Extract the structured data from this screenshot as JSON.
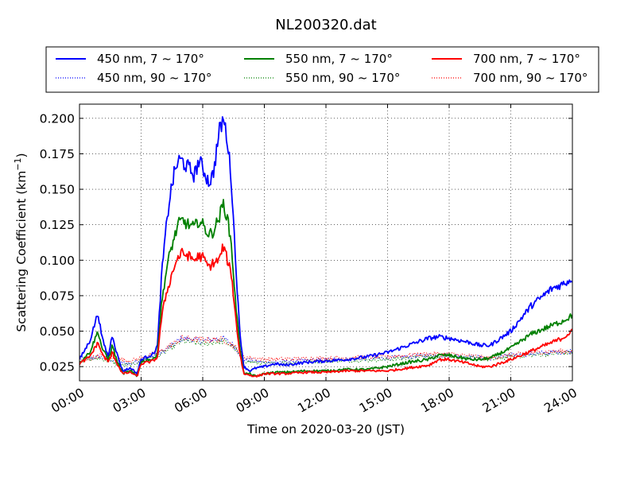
{
  "chart_data": {
    "type": "line",
    "title": "NL200320.dat",
    "xlabel": "Time on 2020-03-20 (JST)",
    "ylabel": "Scattering Coefficient (km",
    "ylabel_sup": "−1",
    "ylabel_close": ")",
    "xlim": [
      0,
      24
    ],
    "ylim": [
      0.015,
      0.21
    ],
    "x_ticks": [
      {
        "v": 0,
        "label": "00:00"
      },
      {
        "v": 3,
        "label": "03:00"
      },
      {
        "v": 6,
        "label": "06:00"
      },
      {
        "v": 9,
        "label": "09:00"
      },
      {
        "v": 12,
        "label": "12:00"
      },
      {
        "v": 15,
        "label": "15:00"
      },
      {
        "v": 18,
        "label": "18:00"
      },
      {
        "v": 21,
        "label": "21:00"
      },
      {
        "v": 24,
        "label": "24:00"
      }
    ],
    "y_ticks": [
      {
        "v": 0.025,
        "label": "0.025"
      },
      {
        "v": 0.05,
        "label": "0.050"
      },
      {
        "v": 0.075,
        "label": "0.075"
      },
      {
        "v": 0.1,
        "label": "0.100"
      },
      {
        "v": 0.125,
        "label": "0.125"
      },
      {
        "v": 0.15,
        "label": "0.150"
      },
      {
        "v": 0.175,
        "label": "0.175"
      },
      {
        "v": 0.2,
        "label": "0.200"
      }
    ],
    "grid": true,
    "legend_position": "top, above plot, 3 columns",
    "series": [
      {
        "name": "450 nm, 7 ~ 170°",
        "color": "#0000ff",
        "style": "solid",
        "x": [
          0,
          0.5,
          0.9,
          1.1,
          1.4,
          1.6,
          1.8,
          2.1,
          2.5,
          2.8,
          3.0,
          3.3,
          3.6,
          3.8,
          4.0,
          4.2,
          4.4,
          4.6,
          4.8,
          5.0,
          5.3,
          5.6,
          5.8,
          6.0,
          6.3,
          6.5,
          6.8,
          7.0,
          7.2,
          7.4,
          7.6,
          7.8,
          8.0,
          8.3,
          8.6,
          9.0,
          9.5,
          10,
          11,
          12,
          13,
          14,
          15,
          16,
          17,
          17.5,
          18,
          19,
          19.5,
          20,
          21,
          22,
          23,
          23.5,
          24
        ],
        "y": [
          0.03,
          0.043,
          0.063,
          0.045,
          0.032,
          0.048,
          0.035,
          0.022,
          0.024,
          0.02,
          0.03,
          0.032,
          0.034,
          0.04,
          0.09,
          0.12,
          0.145,
          0.16,
          0.17,
          0.17,
          0.165,
          0.16,
          0.17,
          0.165,
          0.155,
          0.16,
          0.19,
          0.2,
          0.185,
          0.155,
          0.1,
          0.05,
          0.025,
          0.022,
          0.024,
          0.025,
          0.027,
          0.026,
          0.028,
          0.029,
          0.03,
          0.032,
          0.035,
          0.04,
          0.045,
          0.046,
          0.045,
          0.042,
          0.04,
          0.04,
          0.05,
          0.068,
          0.08,
          0.083,
          0.087
        ]
      },
      {
        "name": "550 nm, 7 ~ 170°",
        "color": "#008000",
        "style": "solid",
        "x": [
          0,
          0.5,
          0.9,
          1.1,
          1.4,
          1.6,
          1.8,
          2.1,
          2.5,
          2.8,
          3.0,
          3.3,
          3.6,
          3.8,
          4.0,
          4.2,
          4.4,
          4.6,
          4.8,
          5.0,
          5.3,
          5.6,
          5.8,
          6.0,
          6.3,
          6.5,
          6.8,
          7.0,
          7.2,
          7.4,
          7.6,
          7.8,
          8.0,
          8.3,
          8.6,
          9.0,
          9.5,
          10,
          11,
          12,
          13,
          14,
          15,
          16,
          17,
          17.5,
          18,
          19,
          19.5,
          20,
          21,
          22,
          23,
          23.5,
          24
        ],
        "y": [
          0.028,
          0.035,
          0.05,
          0.038,
          0.03,
          0.04,
          0.03,
          0.02,
          0.022,
          0.018,
          0.028,
          0.03,
          0.03,
          0.035,
          0.07,
          0.09,
          0.105,
          0.115,
          0.125,
          0.128,
          0.125,
          0.123,
          0.128,
          0.125,
          0.118,
          0.12,
          0.13,
          0.14,
          0.13,
          0.11,
          0.07,
          0.04,
          0.02,
          0.02,
          0.018,
          0.02,
          0.021,
          0.021,
          0.022,
          0.022,
          0.023,
          0.023,
          0.025,
          0.028,
          0.03,
          0.033,
          0.033,
          0.03,
          0.03,
          0.031,
          0.038,
          0.048,
          0.054,
          0.057,
          0.061
        ]
      },
      {
        "name": "700 nm, 7 ~ 170°",
        "color": "#ff0000",
        "style": "solid",
        "x": [
          0,
          0.5,
          0.9,
          1.1,
          1.4,
          1.6,
          1.8,
          2.1,
          2.5,
          2.8,
          3.0,
          3.3,
          3.6,
          3.8,
          4.0,
          4.2,
          4.4,
          4.6,
          4.8,
          5.0,
          5.3,
          5.6,
          5.8,
          6.0,
          6.3,
          6.5,
          6.8,
          7.0,
          7.2,
          7.4,
          7.6,
          7.8,
          8.0,
          8.3,
          8.6,
          9.0,
          9.5,
          10,
          11,
          12,
          13,
          14,
          15,
          16,
          17,
          17.5,
          18,
          19,
          19.5,
          20,
          21,
          22,
          23,
          23.5,
          24
        ],
        "y": [
          0.027,
          0.032,
          0.042,
          0.034,
          0.028,
          0.035,
          0.028,
          0.02,
          0.021,
          0.018,
          0.027,
          0.028,
          0.029,
          0.032,
          0.06,
          0.075,
          0.085,
          0.095,
          0.102,
          0.105,
          0.103,
          0.1,
          0.103,
          0.102,
          0.095,
          0.098,
          0.1,
          0.11,
          0.1,
          0.09,
          0.06,
          0.035,
          0.02,
          0.019,
          0.018,
          0.02,
          0.02,
          0.02,
          0.021,
          0.021,
          0.022,
          0.022,
          0.022,
          0.024,
          0.026,
          0.03,
          0.03,
          0.027,
          0.025,
          0.025,
          0.03,
          0.036,
          0.042,
          0.045,
          0.05
        ]
      },
      {
        "name": "450 nm, 90 ~ 170°",
        "color": "#0000ff",
        "style": "dotted",
        "x": [
          0,
          1,
          2,
          2.5,
          3,
          4,
          5,
          6,
          7,
          7.5,
          8,
          9,
          12,
          15,
          17,
          18,
          20,
          21,
          22,
          24
        ],
        "y": [
          0.03,
          0.032,
          0.028,
          0.027,
          0.03,
          0.035,
          0.045,
          0.043,
          0.045,
          0.04,
          0.03,
          0.028,
          0.03,
          0.031,
          0.033,
          0.033,
          0.031,
          0.033,
          0.034,
          0.036
        ]
      },
      {
        "name": "550 nm, 90 ~ 170°",
        "color": "#008000",
        "style": "dotted",
        "x": [
          0,
          1,
          2,
          2.5,
          3,
          4,
          5,
          6,
          7,
          7.5,
          8,
          9,
          12,
          15,
          17,
          18,
          20,
          21,
          22,
          24
        ],
        "y": [
          0.029,
          0.031,
          0.026,
          0.026,
          0.029,
          0.034,
          0.043,
          0.041,
          0.043,
          0.039,
          0.029,
          0.027,
          0.029,
          0.03,
          0.032,
          0.032,
          0.03,
          0.032,
          0.033,
          0.035
        ]
      },
      {
        "name": "700 nm, 90 ~ 170°",
        "color": "#ff0000",
        "style": "dotted",
        "x": [
          0,
          1,
          2,
          2.5,
          3,
          4,
          5,
          6,
          7,
          7.5,
          8,
          9,
          12,
          15,
          17,
          18,
          20,
          21,
          22,
          24
        ],
        "y": [
          0.028,
          0.033,
          0.03,
          0.029,
          0.031,
          0.036,
          0.045,
          0.044,
          0.044,
          0.04,
          0.032,
          0.03,
          0.031,
          0.032,
          0.034,
          0.034,
          0.031,
          0.033,
          0.035,
          0.036
        ]
      }
    ]
  }
}
